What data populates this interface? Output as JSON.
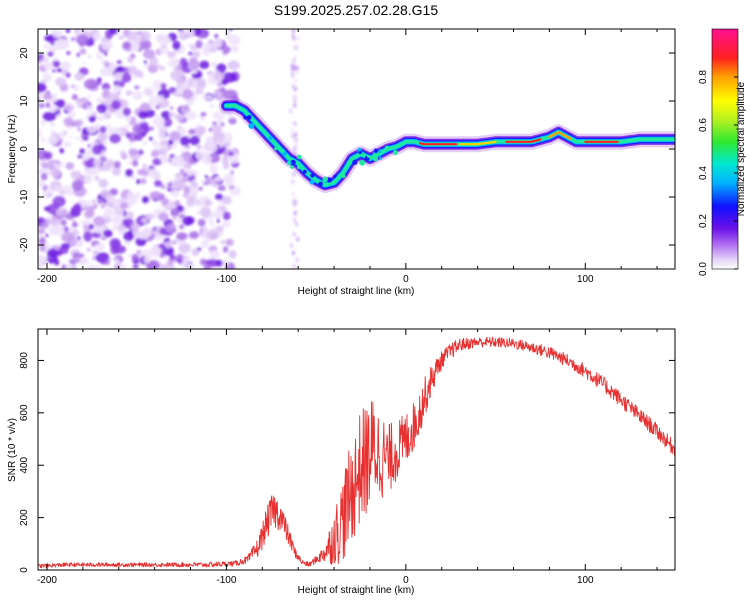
{
  "title": "S199.2025.257.02.28.G15",
  "chart_data": [
    {
      "type": "heatmap",
      "xlabel": "Height of straight line (km)",
      "ylabel": "Frequency (Hz)",
      "xlim": [
        -205,
        150
      ],
      "ylim": [
        -25,
        25
      ],
      "xticks": [
        -200,
        -100,
        0,
        100
      ],
      "yticks": [
        -20,
        -10,
        0,
        10,
        20
      ],
      "xtick_labels": [
        "-200",
        "-100",
        "0",
        "100"
      ],
      "ytick_labels": [
        "-20",
        "-10",
        "0",
        "10",
        "20"
      ],
      "ridge": {
        "x": [
          -100,
          -95,
          -90,
          -85,
          -80,
          -75,
          -70,
          -65,
          -60,
          -55,
          -50,
          -45,
          -40,
          -35,
          -30,
          -25,
          -20,
          -15,
          -10,
          -5,
          0,
          5,
          10,
          20,
          30,
          40,
          50,
          60,
          70,
          75,
          80,
          85,
          90,
          95,
          100,
          110,
          120,
          130,
          140,
          150
        ],
        "y": [
          9,
          9,
          8,
          6,
          4,
          2,
          0,
          -2,
          -3,
          -5,
          -6.5,
          -7.5,
          -7,
          -5,
          -2,
          -1,
          -2,
          -1,
          0,
          0.5,
          1.5,
          1.5,
          1,
          1,
          1,
          1,
          1.5,
          1.5,
          1.5,
          2,
          2.5,
          3.5,
          2.5,
          1.5,
          1.5,
          1.5,
          1.5,
          2,
          2,
          2
        ]
      },
      "colorbar": {
        "label": "Normalized spectral amplitude",
        "range": [
          0,
          1
        ],
        "ticks": [
          0.0,
          0.2,
          0.4,
          0.6,
          0.8
        ],
        "tick_labels": [
          "0.0",
          "0.2",
          "0.4",
          "0.6",
          "0.8"
        ]
      }
    },
    {
      "type": "line",
      "xlabel": "Height of straight line (km)",
      "ylabel": "SNR (10 * v/v)",
      "xlim": [
        -205,
        150
      ],
      "ylim": [
        0,
        920
      ],
      "xticks": [
        -200,
        -100,
        0,
        100
      ],
      "yticks": [
        0,
        200,
        400,
        600,
        800
      ],
      "xtick_labels": [
        "-200",
        "-100",
        "0",
        "100"
      ],
      "ytick_labels": [
        "0",
        "200",
        "400",
        "600",
        "800"
      ],
      "color": "#e83030",
      "series": [
        {
          "name": "SNR",
          "x": [
            -205,
            -190,
            -170,
            -150,
            -130,
            -110,
            -95,
            -88,
            -82,
            -78,
            -74,
            -70,
            -66,
            -62,
            -58,
            -54,
            -50,
            -46,
            -42,
            -38,
            -34,
            -30,
            -26,
            -22,
            -18,
            -14,
            -10,
            -6,
            -2,
            2,
            6,
            10,
            14,
            18,
            22,
            26,
            30,
            40,
            50,
            60,
            70,
            80,
            90,
            100,
            110,
            120,
            130,
            140,
            150
          ],
          "values": [
            15,
            20,
            20,
            20,
            20,
            20,
            25,
            40,
            90,
            170,
            230,
            210,
            140,
            70,
            30,
            20,
            40,
            60,
            100,
            150,
            220,
            300,
            380,
            420,
            470,
            440,
            420,
            450,
            480,
            520,
            570,
            650,
            720,
            780,
            820,
            840,
            860,
            870,
            870,
            865,
            850,
            830,
            800,
            760,
            710,
            650,
            590,
            530,
            460
          ],
          "noise": [
            8,
            8,
            8,
            8,
            8,
            10,
            10,
            15,
            40,
            60,
            70,
            60,
            40,
            20,
            10,
            10,
            15,
            30,
            80,
            130,
            180,
            200,
            220,
            220,
            200,
            170,
            140,
            120,
            110,
            100,
            90,
            80,
            60,
            40,
            30,
            30,
            25,
            20,
            20,
            20,
            22,
            25,
            25,
            28,
            30,
            30,
            30,
            30,
            30
          ]
        }
      ]
    }
  ]
}
